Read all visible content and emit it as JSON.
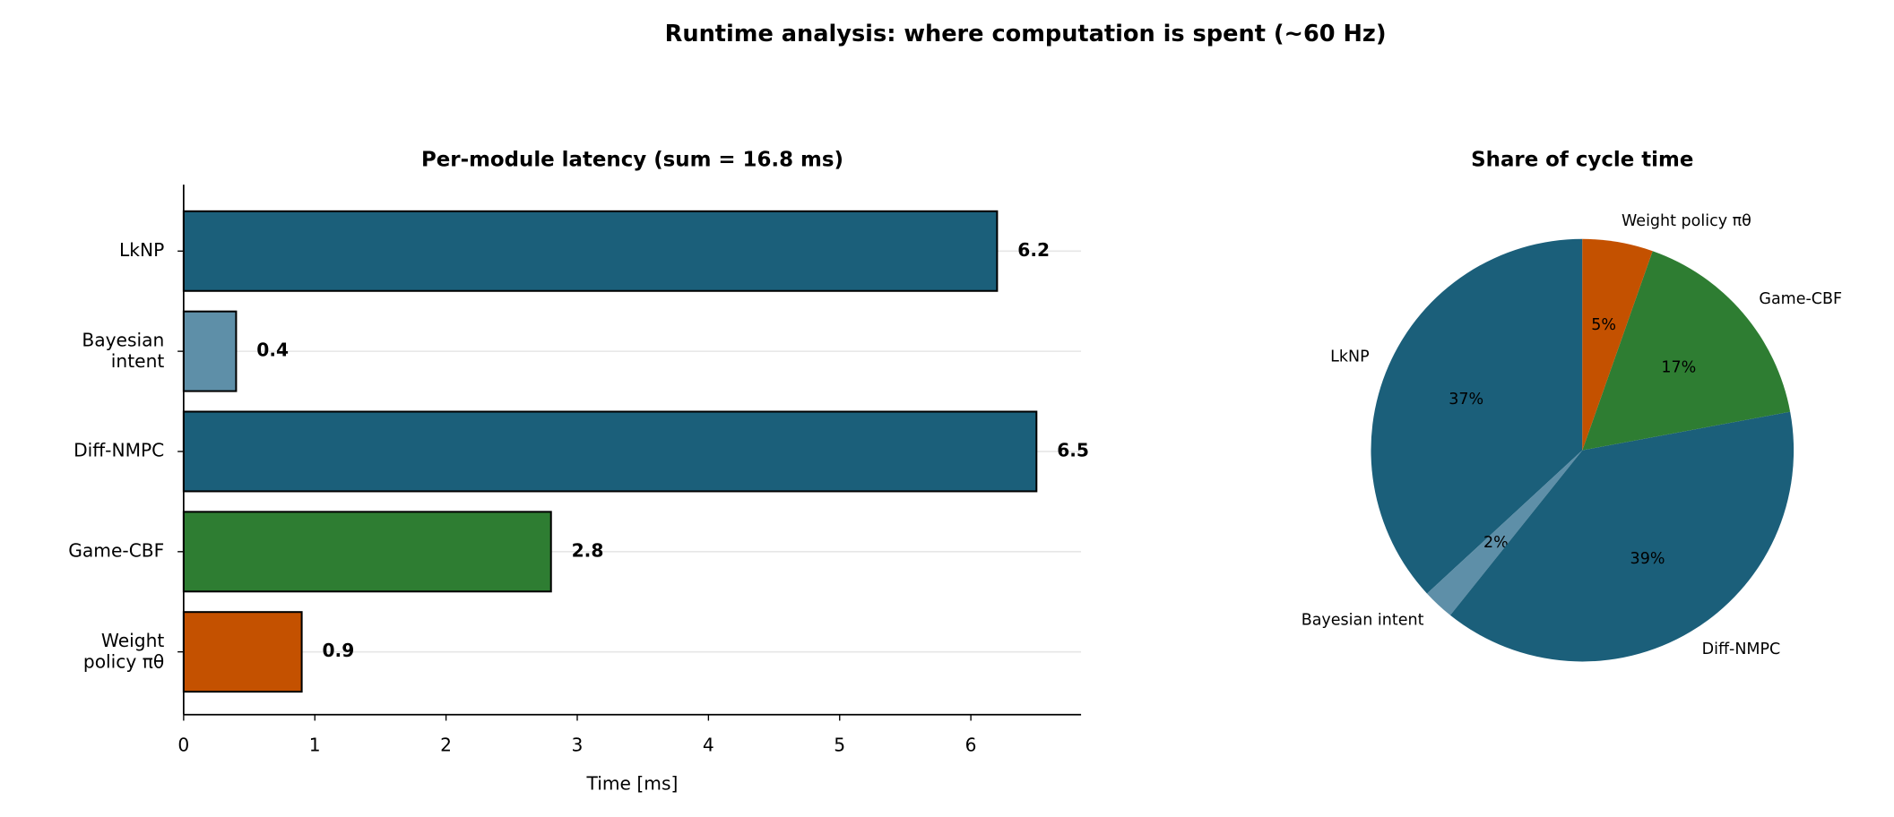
{
  "title": "Runtime analysis: where computation is spent (~60 Hz)",
  "chart_data": [
    {
      "type": "barh",
      "title": "Per-module latency (sum = 16.8 ms)",
      "xlabel": "Time [ms]",
      "categories": [
        "LkNP",
        "Bayesian\nintent",
        "Diff-NMPC",
        "Game-CBF",
        "Weight\npolicy πθ"
      ],
      "values": [
        6.2,
        0.4,
        6.5,
        2.8,
        0.9
      ],
      "colors": [
        "#1b5f7a",
        "#5e8fa8",
        "#1b5f7a",
        "#2e7d32",
        "#c45100"
      ],
      "xlim": [
        0,
        6.84
      ],
      "xticks": [
        0,
        1,
        2,
        3,
        4,
        5,
        6
      ],
      "grid": true
    },
    {
      "type": "pie",
      "title": "Share of cycle time",
      "categories": [
        "LkNP",
        "Bayesian intent",
        "Diff-NMPC",
        "Game-CBF",
        "Weight policy πθ"
      ],
      "values": [
        36.9,
        2.4,
        38.7,
        16.7,
        5.4
      ],
      "value_labels": [
        "37%",
        "2%",
        "39%",
        "17%",
        "5%"
      ],
      "colors": [
        "#1b5f7a",
        "#5e8fa8",
        "#1b5f7a",
        "#2e7d32",
        "#c45100"
      ]
    }
  ]
}
